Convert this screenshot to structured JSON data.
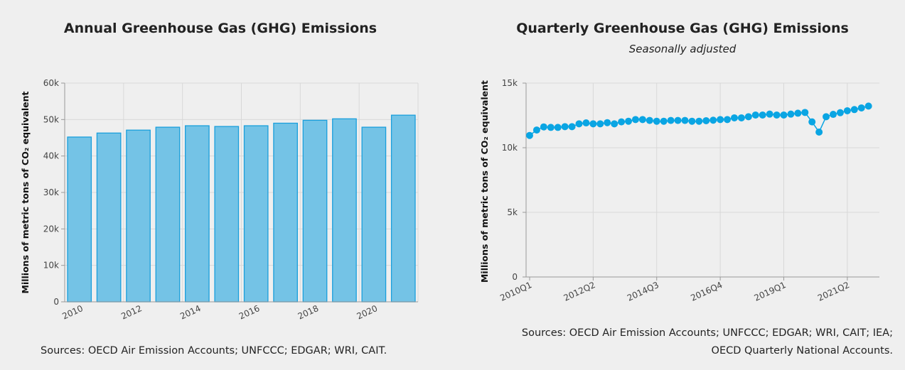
{
  "colors": {
    "bar_fill": "#74c3e6",
    "bar_stroke": "#1a9fdc",
    "point": "#0aa5e3",
    "grid": "#d8d8d8"
  },
  "chart_data": [
    {
      "type": "bar",
      "title": "Annual Greenhouse Gas (GHG) Emissions",
      "ylabel": "Millions of metric tons of CO₂ equivalent",
      "ylim": [
        0,
        60000
      ],
      "yticks": [
        "0",
        "10k",
        "20k",
        "30k",
        "40k",
        "50k",
        "60k"
      ],
      "categories": [
        "2010",
        "2011",
        "2012",
        "2013",
        "2014",
        "2015",
        "2016",
        "2017",
        "2018",
        "2019",
        "2020",
        "2021"
      ],
      "xtick_labels": [
        "2010",
        "2012",
        "2014",
        "2016",
        "2018",
        "2020"
      ],
      "values": [
        45200,
        46300,
        47100,
        47900,
        48300,
        48100,
        48300,
        49000,
        49800,
        50200,
        47900,
        51200
      ],
      "grid": true,
      "source": "Sources: OECD Air Emission Accounts; UNFCCC; EDGAR; WRI, CAIT."
    },
    {
      "type": "line",
      "title": "Quarterly Greenhouse Gas (GHG) Emissions",
      "subtitle": "Seasonally adjusted",
      "ylabel": "Millions of metric tons of CO₂ equivalent",
      "ylim": [
        0,
        15000
      ],
      "yticks": [
        "0",
        "5k",
        "10k",
        "15k"
      ],
      "xtick_labels": [
        "2010Q1",
        "2012Q2",
        "2014Q3",
        "2016Q4",
        "2019Q1",
        "2021Q2"
      ],
      "x_start": "2010Q1",
      "x_end": "2022Q1",
      "values": [
        10950,
        11370,
        11610,
        11570,
        11570,
        11630,
        11630,
        11850,
        11920,
        11850,
        11850,
        11940,
        11850,
        12000,
        12050,
        12180,
        12180,
        12110,
        12050,
        12050,
        12110,
        12110,
        12110,
        12050,
        12050,
        12090,
        12130,
        12180,
        12180,
        12310,
        12310,
        12400,
        12530,
        12530,
        12600,
        12530,
        12530,
        12600,
        12670,
        12730,
        12000,
        11210,
        12400,
        12580,
        12710,
        12860,
        12950,
        13080,
        13220
      ],
      "grid": true,
      "source_line1": "Sources: OECD Air Emission Accounts; UNFCCC; EDGAR; WRI, CAIT; IEA;",
      "source_line2": "OECD Quarterly National Accounts."
    }
  ]
}
